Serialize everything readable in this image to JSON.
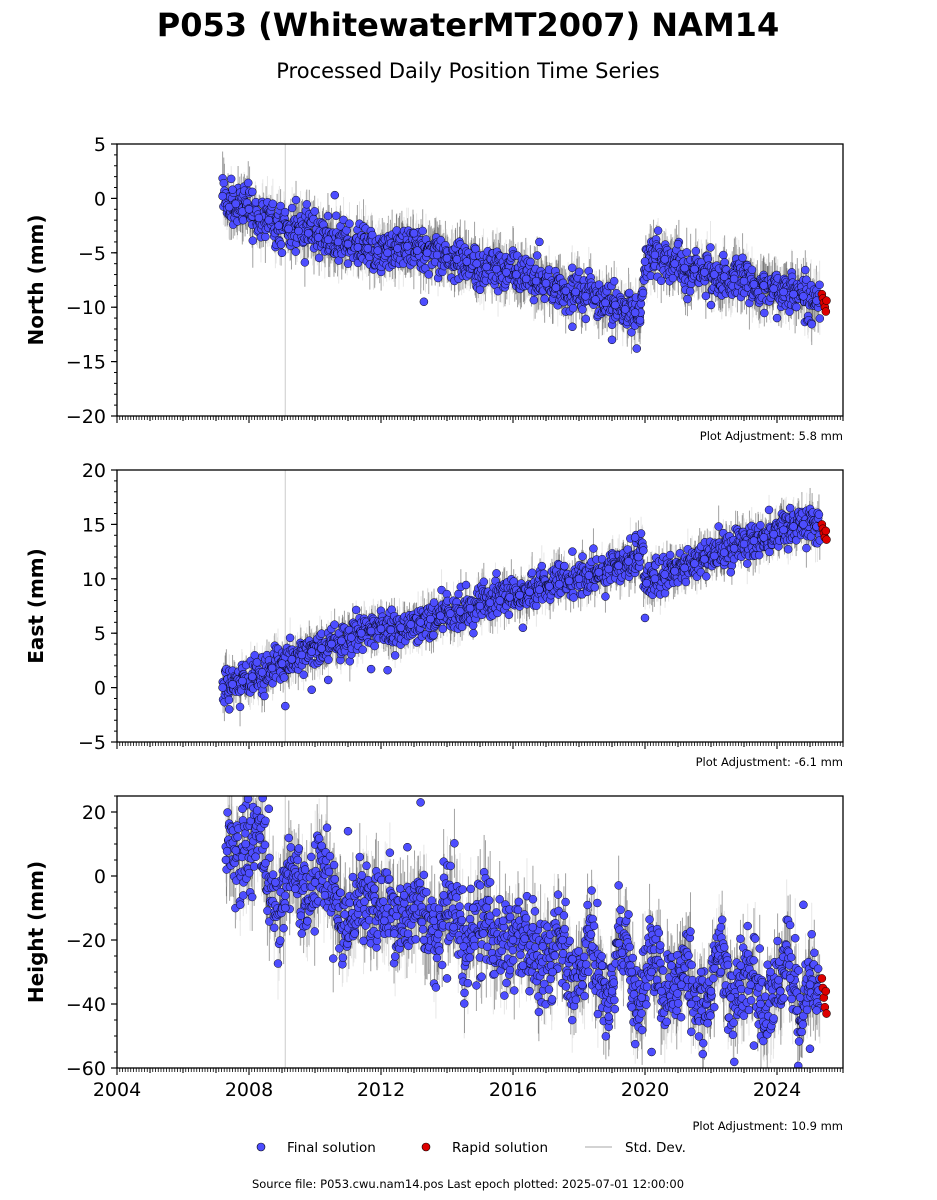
{
  "title": "P053 (WhitewaterMT2007) NAM14",
  "subtitle": "Processed Daily Position Time Series",
  "colors": {
    "final": "#4d4dff",
    "rapid": "#dd0000",
    "stddev": "#d3d3d3",
    "stddev_dark": "#555555",
    "outline": "#000000"
  },
  "legend": {
    "final_label": "Final solution",
    "rapid_label": "Rapid solution",
    "stddev_label": "Std. Dev."
  },
  "footer": "Source file: P053.cwu.nam14.pos  Last epoch plotted: 2025-07-01 12:00:00",
  "chart_data": [
    {
      "type": "scatter",
      "component": "north",
      "ylabel": "North (mm)",
      "ylim": [
        -20,
        5
      ],
      "yticks": [
        5,
        0,
        -5,
        -10,
        -15,
        -20
      ],
      "ytick_labels": [
        "5",
        "0",
        "−5",
        "−10",
        "−15",
        "−20"
      ],
      "xlim": [
        2004,
        2026
      ],
      "adjustment": "Plot Adjustment: 5.8 mm",
      "series": [
        {
          "name": "Final solution",
          "points": [
            [
              2007.2,
              0.2
            ],
            [
              2007.4,
              -0.8
            ],
            [
              2007.6,
              -0.5
            ],
            [
              2007.8,
              -1.2
            ],
            [
              2008.0,
              -1.0
            ],
            [
              2008.3,
              -1.8
            ],
            [
              2008.6,
              -2.0
            ],
            [
              2008.9,
              -2.5
            ],
            [
              2009.2,
              -2.8
            ],
            [
              2009.5,
              -3.0
            ],
            [
              2009.8,
              -3.2
            ],
            [
              2010.1,
              -3.6
            ],
            [
              2010.4,
              -3.8
            ],
            [
              2010.7,
              -4.0
            ],
            [
              2011.0,
              -4.2
            ],
            [
              2011.3,
              -4.5
            ],
            [
              2011.6,
              -4.6
            ],
            [
              2011.9,
              -4.8
            ],
            [
              2012.2,
              -5.0
            ],
            [
              2012.5,
              -4.6
            ],
            [
              2012.8,
              -4.4
            ],
            [
              2013.1,
              -4.8
            ],
            [
              2013.4,
              -5.0
            ],
            [
              2013.7,
              -5.2
            ],
            [
              2014.0,
              -5.5
            ],
            [
              2014.3,
              -5.6
            ],
            [
              2014.6,
              -5.8
            ],
            [
              2014.9,
              -6.0
            ],
            [
              2015.2,
              -6.3
            ],
            [
              2015.5,
              -6.5
            ],
            [
              2015.8,
              -6.8
            ],
            [
              2016.1,
              -7.0
            ],
            [
              2016.4,
              -7.4
            ],
            [
              2016.7,
              -7.6
            ],
            [
              2017.0,
              -7.8
            ],
            [
              2017.3,
              -8.2
            ],
            [
              2017.6,
              -8.5
            ],
            [
              2017.9,
              -8.6
            ],
            [
              2018.2,
              -9.0
            ],
            [
              2018.5,
              -9.3
            ],
            [
              2018.8,
              -9.6
            ],
            [
              2019.1,
              -9.8
            ],
            [
              2019.4,
              -10.2
            ],
            [
              2019.7,
              -10.5
            ],
            [
              2019.85,
              -11.2
            ],
            [
              2020.0,
              -5.8
            ],
            [
              2020.3,
              -5.2
            ],
            [
              2020.6,
              -5.6
            ],
            [
              2020.9,
              -6.0
            ],
            [
              2021.2,
              -6.4
            ],
            [
              2021.5,
              -6.5
            ],
            [
              2021.8,
              -6.8
            ],
            [
              2022.1,
              -7.0
            ],
            [
              2022.4,
              -7.2
            ],
            [
              2022.7,
              -7.4
            ],
            [
              2023.0,
              -7.6
            ],
            [
              2023.3,
              -7.9
            ],
            [
              2023.6,
              -8.0
            ],
            [
              2023.9,
              -8.3
            ],
            [
              2024.2,
              -8.6
            ],
            [
              2024.5,
              -8.8
            ],
            [
              2024.8,
              -9.0
            ],
            [
              2025.2,
              -9.4
            ],
            [
              2007.5,
              0.8
            ],
            [
              2008.1,
              0.6
            ],
            [
              2010.6,
              0.3
            ],
            [
              2013.3,
              -9.5
            ],
            [
              2016.8,
              -4.0
            ],
            [
              2019.0,
              -13.0
            ],
            [
              2019.75,
              -13.8
            ],
            [
              2021.0,
              -4.2
            ],
            [
              2024.0,
              -11.0
            ],
            [
              2013.0,
              -3.2
            ],
            [
              2015.0,
              -8.4
            ],
            [
              2017.8,
              -11.8
            ],
            [
              2022.0,
              -9.8
            ],
            [
              2011.0,
              -6.0
            ],
            [
              2009.0,
              -5.0
            ]
          ]
        },
        {
          "name": "Rapid solution",
          "points": [
            [
              2025.36,
              -8.8
            ],
            [
              2025.39,
              -9.2
            ],
            [
              2025.42,
              -9.6
            ],
            [
              2025.45,
              -10.0
            ],
            [
              2025.48,
              -10.4
            ],
            [
              2025.5,
              -9.4
            ]
          ]
        }
      ]
    },
    {
      "type": "scatter",
      "component": "east",
      "ylabel": "East (mm)",
      "ylim": [
        -5,
        20
      ],
      "yticks": [
        20,
        15,
        10,
        5,
        0,
        -5
      ],
      "ytick_labels": [
        "20",
        "15",
        "10",
        "5",
        "0",
        "−5"
      ],
      "xlim": [
        2004,
        2026
      ],
      "adjustment": "Plot Adjustment: -6.1 mm",
      "series": [
        {
          "name": "Final solution",
          "points": [
            [
              2007.2,
              0.0
            ],
            [
              2007.5,
              0.3
            ],
            [
              2007.8,
              0.6
            ],
            [
              2008.1,
              1.0
            ],
            [
              2008.4,
              1.4
            ],
            [
              2008.7,
              1.8
            ],
            [
              2009.0,
              2.2
            ],
            [
              2009.3,
              2.6
            ],
            [
              2009.6,
              3.0
            ],
            [
              2009.9,
              3.3
            ],
            [
              2010.2,
              3.6
            ],
            [
              2010.5,
              4.0
            ],
            [
              2010.8,
              4.3
            ],
            [
              2011.1,
              4.6
            ],
            [
              2011.4,
              5.0
            ],
            [
              2011.7,
              5.2
            ],
            [
              2012.0,
              5.4
            ],
            [
              2012.3,
              5.3
            ],
            [
              2012.6,
              5.5
            ],
            [
              2012.9,
              5.8
            ],
            [
              2013.2,
              6.0
            ],
            [
              2013.5,
              6.3
            ],
            [
              2013.8,
              6.6
            ],
            [
              2014.1,
              6.8
            ],
            [
              2014.4,
              7.0
            ],
            [
              2014.7,
              7.3
            ],
            [
              2015.0,
              7.5
            ],
            [
              2015.3,
              7.8
            ],
            [
              2015.6,
              8.0
            ],
            [
              2015.9,
              8.3
            ],
            [
              2016.2,
              8.5
            ],
            [
              2016.5,
              8.8
            ],
            [
              2016.8,
              9.0
            ],
            [
              2017.1,
              9.3
            ],
            [
              2017.4,
              9.5
            ],
            [
              2017.7,
              9.8
            ],
            [
              2018.0,
              10.0
            ],
            [
              2018.3,
              10.3
            ],
            [
              2018.6,
              10.6
            ],
            [
              2018.9,
              10.9
            ],
            [
              2019.2,
              11.2
            ],
            [
              2019.5,
              11.6
            ],
            [
              2019.8,
              12.0
            ],
            [
              2019.95,
              12.6
            ],
            [
              2020.05,
              9.6
            ],
            [
              2020.3,
              10.0
            ],
            [
              2020.6,
              10.4
            ],
            [
              2020.9,
              10.7
            ],
            [
              2021.2,
              11.0
            ],
            [
              2021.5,
              11.4
            ],
            [
              2021.8,
              11.8
            ],
            [
              2022.1,
              12.1
            ],
            [
              2022.4,
              12.4
            ],
            [
              2022.7,
              12.8
            ],
            [
              2023.0,
              13.2
            ],
            [
              2023.3,
              13.5
            ],
            [
              2023.6,
              13.8
            ],
            [
              2023.9,
              14.1
            ],
            [
              2024.2,
              14.5
            ],
            [
              2024.5,
              14.8
            ],
            [
              2024.8,
              15.0
            ],
            [
              2025.2,
              14.8
            ],
            [
              2009.1,
              -1.7
            ],
            [
              2009.9,
              -0.2
            ],
            [
              2011.7,
              1.7
            ],
            [
              2012.2,
              1.6
            ],
            [
              2020.0,
              6.4
            ],
            [
              2022.6,
              10.6
            ],
            [
              2016.3,
              5.5
            ],
            [
              2014.8,
              5.0
            ],
            [
              2024.4,
              16.5
            ],
            [
              2010.4,
              0.7
            ],
            [
              2007.4,
              -2.0
            ],
            [
              2019.7,
              13.8
            ],
            [
              2015.5,
              10.5
            ],
            [
              2017.8,
              12.5
            ]
          ]
        },
        {
          "name": "Rapid solution",
          "points": [
            [
              2025.36,
              15.0
            ],
            [
              2025.39,
              14.6
            ],
            [
              2025.42,
              14.2
            ],
            [
              2025.45,
              13.8
            ],
            [
              2025.48,
              14.4
            ],
            [
              2025.5,
              13.6
            ]
          ]
        }
      ]
    },
    {
      "type": "scatter",
      "component": "height",
      "ylabel": "Height (mm)",
      "ylim": [
        -60,
        25
      ],
      "yticks": [
        20,
        0,
        -20,
        -40,
        -60
      ],
      "ytick_labels": [
        "20",
        "0",
        "−20",
        "−40",
        "−60"
      ],
      "xlim": [
        2004,
        2026
      ],
      "xticks": [
        2004,
        2008,
        2012,
        2016,
        2020,
        2024
      ],
      "xtick_labels": [
        "2004",
        "2008",
        "2012",
        "2016",
        "2020",
        "2024"
      ],
      "adjustment": "Plot Adjustment: 10.9 mm",
      "series": [
        {
          "name": "Final solution",
          "points": [
            [
              2007.3,
              5
            ],
            [
              2007.6,
              8
            ],
            [
              2007.9,
              10
            ],
            [
              2008.2,
              6
            ],
            [
              2008.5,
              4
            ],
            [
              2008.8,
              -2
            ],
            [
              2009.1,
              -10
            ],
            [
              2009.4,
              -4
            ],
            [
              2009.7,
              2
            ],
            [
              2010.0,
              -2
            ],
            [
              2010.3,
              -6
            ],
            [
              2010.6,
              -1
            ],
            [
              2010.9,
              -12
            ],
            [
              2011.2,
              -18
            ],
            [
              2011.5,
              -8
            ],
            [
              2011.8,
              -4
            ],
            [
              2012.1,
              -14
            ],
            [
              2012.4,
              -18
            ],
            [
              2012.7,
              -6
            ],
            [
              2013.0,
              -10
            ],
            [
              2013.3,
              -20
            ],
            [
              2013.6,
              -14
            ],
            [
              2013.9,
              -6
            ],
            [
              2014.2,
              -16
            ],
            [
              2014.5,
              -22
            ],
            [
              2014.8,
              -10
            ],
            [
              2015.1,
              -18
            ],
            [
              2015.4,
              -26
            ],
            [
              2015.7,
              -14
            ],
            [
              2016.0,
              -20
            ],
            [
              2016.3,
              -28
            ],
            [
              2016.6,
              -16
            ],
            [
              2016.9,
              -22
            ],
            [
              2017.2,
              -30
            ],
            [
              2017.5,
              -20
            ],
            [
              2017.8,
              -26
            ],
            [
              2018.1,
              -34
            ],
            [
              2018.4,
              -22
            ],
            [
              2018.7,
              -28
            ],
            [
              2019.0,
              -36
            ],
            [
              2019.3,
              -24
            ],
            [
              2019.6,
              -30
            ],
            [
              2019.9,
              -38
            ],
            [
              2020.2,
              -30
            ],
            [
              2020.5,
              -36
            ],
            [
              2020.8,
              -28
            ],
            [
              2021.1,
              -34
            ],
            [
              2021.4,
              -40
            ],
            [
              2021.7,
              -30
            ],
            [
              2022.0,
              -36
            ],
            [
              2022.3,
              -30
            ],
            [
              2022.6,
              -38
            ],
            [
              2022.9,
              -28
            ],
            [
              2023.2,
              -34
            ],
            [
              2023.5,
              -40
            ],
            [
              2023.8,
              -30
            ],
            [
              2024.1,
              -36
            ],
            [
              2024.4,
              -32
            ],
            [
              2024.7,
              -38
            ],
            [
              2025.0,
              -34
            ],
            [
              2025.2,
              -42
            ],
            [
              2013.2,
              23
            ],
            [
              2007.8,
              21
            ],
            [
              2008.6,
              21
            ],
            [
              2012.8,
              9
            ],
            [
              2011.0,
              14
            ],
            [
              2020.2,
              -55
            ],
            [
              2023.3,
              -53
            ],
            [
              2025.0,
              -54
            ],
            [
              2024.8,
              -9
            ],
            [
              2009.6,
              -18
            ],
            [
              2018.9,
              -44
            ],
            [
              2014.0,
              -32
            ],
            [
              2016.5,
              -36
            ],
            [
              2021.9,
              -46
            ],
            [
              2019.5,
              -12
            ]
          ]
        },
        {
          "name": "Rapid solution",
          "points": [
            [
              2025.36,
              -32
            ],
            [
              2025.39,
              -35
            ],
            [
              2025.42,
              -38
            ],
            [
              2025.45,
              -41
            ],
            [
              2025.48,
              -36
            ],
            [
              2025.5,
              -43
            ]
          ]
        }
      ]
    }
  ]
}
